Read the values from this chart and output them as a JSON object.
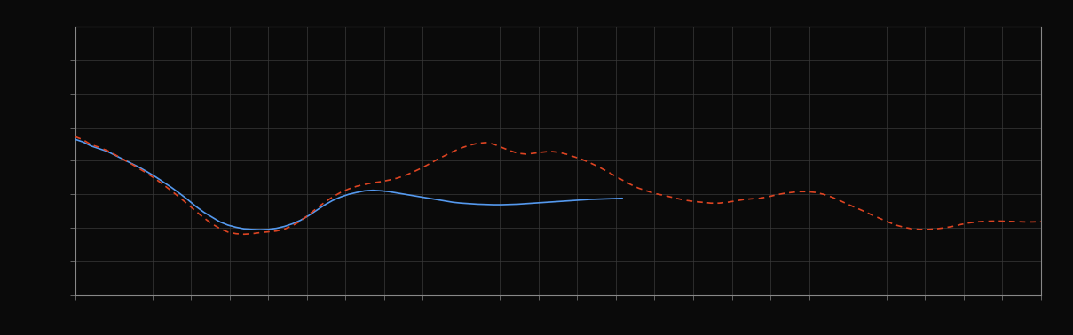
{
  "background_color": "#0a0a0a",
  "plot_bg_color": "#0a0a0a",
  "grid_color": "#3a3a3a",
  "axis_color": "#888888",
  "tick_color": "#888888",
  "line1_color": "#5599ee",
  "line2_color": "#dd4422",
  "figsize": [
    12.09,
    3.78
  ],
  "dpi": 100,
  "xlim": [
    0,
    120
  ],
  "ylim": [
    0,
    10
  ],
  "n_gridlines_x": 25,
  "n_gridlines_y": 8,
  "blue_x": [
    0,
    1,
    2,
    3,
    4,
    5,
    6,
    7,
    8,
    9,
    10,
    11,
    12,
    13,
    14,
    15,
    16,
    17,
    18,
    19,
    20,
    21,
    22,
    23,
    24,
    25,
    26,
    27,
    28,
    29,
    30,
    31,
    32,
    33,
    34,
    35,
    36,
    37,
    38,
    39,
    40,
    41,
    42,
    43,
    44,
    45,
    46,
    47,
    48,
    49,
    50,
    51,
    52,
    53,
    54,
    55,
    56,
    57,
    58,
    59,
    60,
    61,
    62,
    63,
    64,
    65,
    66,
    67,
    68
  ],
  "blue_y": [
    5.8,
    5.7,
    5.55,
    5.45,
    5.35,
    5.2,
    5.05,
    4.9,
    4.75,
    4.58,
    4.4,
    4.2,
    4.0,
    3.78,
    3.55,
    3.3,
    3.08,
    2.9,
    2.72,
    2.6,
    2.52,
    2.46,
    2.44,
    2.43,
    2.44,
    2.48,
    2.55,
    2.65,
    2.78,
    2.95,
    3.15,
    3.35,
    3.52,
    3.65,
    3.75,
    3.82,
    3.88,
    3.9,
    3.88,
    3.85,
    3.8,
    3.75,
    3.7,
    3.65,
    3.6,
    3.55,
    3.5,
    3.45,
    3.42,
    3.4,
    3.38,
    3.37,
    3.36,
    3.36,
    3.37,
    3.38,
    3.4,
    3.42,
    3.44,
    3.46,
    3.48,
    3.5,
    3.52,
    3.54,
    3.56,
    3.57,
    3.58,
    3.59,
    3.6
  ],
  "red_x": [
    0,
    1,
    2,
    3,
    4,
    5,
    6,
    7,
    8,
    9,
    10,
    11,
    12,
    13,
    14,
    15,
    16,
    17,
    18,
    19,
    20,
    21,
    22,
    23,
    24,
    25,
    26,
    27,
    28,
    29,
    30,
    31,
    32,
    33,
    34,
    35,
    36,
    37,
    38,
    39,
    40,
    41,
    42,
    43,
    44,
    45,
    46,
    47,
    48,
    49,
    50,
    51,
    52,
    53,
    54,
    55,
    56,
    57,
    58,
    59,
    60,
    61,
    62,
    63,
    64,
    65,
    66,
    67,
    68,
    69,
    70,
    71,
    72,
    73,
    74,
    75,
    76,
    77,
    78,
    79,
    80,
    81,
    82,
    83,
    84,
    85,
    86,
    87,
    88,
    89,
    90,
    91,
    92,
    93,
    94,
    95,
    96,
    97,
    98,
    99,
    100,
    101,
    102,
    103,
    104,
    105,
    106,
    107,
    108,
    109,
    110,
    111,
    112,
    113,
    114,
    115,
    116,
    117,
    118,
    119,
    120
  ],
  "red_y": [
    5.9,
    5.78,
    5.6,
    5.5,
    5.38,
    5.22,
    5.05,
    4.88,
    4.7,
    4.52,
    4.32,
    4.1,
    3.87,
    3.63,
    3.38,
    3.12,
    2.87,
    2.65,
    2.47,
    2.34,
    2.28,
    2.26,
    2.28,
    2.32,
    2.35,
    2.38,
    2.45,
    2.58,
    2.75,
    2.98,
    3.22,
    3.45,
    3.65,
    3.82,
    3.95,
    4.05,
    4.12,
    4.18,
    4.22,
    4.28,
    4.35,
    4.45,
    4.58,
    4.72,
    4.88,
    5.05,
    5.2,
    5.35,
    5.48,
    5.58,
    5.65,
    5.68,
    5.62,
    5.5,
    5.38,
    5.28,
    5.25,
    5.28,
    5.32,
    5.35,
    5.32,
    5.25,
    5.15,
    5.05,
    4.92,
    4.78,
    4.62,
    4.45,
    4.28,
    4.12,
    3.98,
    3.88,
    3.78,
    3.72,
    3.65,
    3.58,
    3.52,
    3.48,
    3.45,
    3.42,
    3.42,
    3.45,
    3.5,
    3.55,
    3.58,
    3.6,
    3.65,
    3.72,
    3.78,
    3.82,
    3.85,
    3.85,
    3.82,
    3.75,
    3.65,
    3.52,
    3.38,
    3.25,
    3.12,
    2.98,
    2.85,
    2.72,
    2.6,
    2.52,
    2.46,
    2.44,
    2.44,
    2.46,
    2.5,
    2.55,
    2.62,
    2.68,
    2.72,
    2.74,
    2.75,
    2.75,
    2.74,
    2.73,
    2.72,
    2.72,
    2.73
  ]
}
